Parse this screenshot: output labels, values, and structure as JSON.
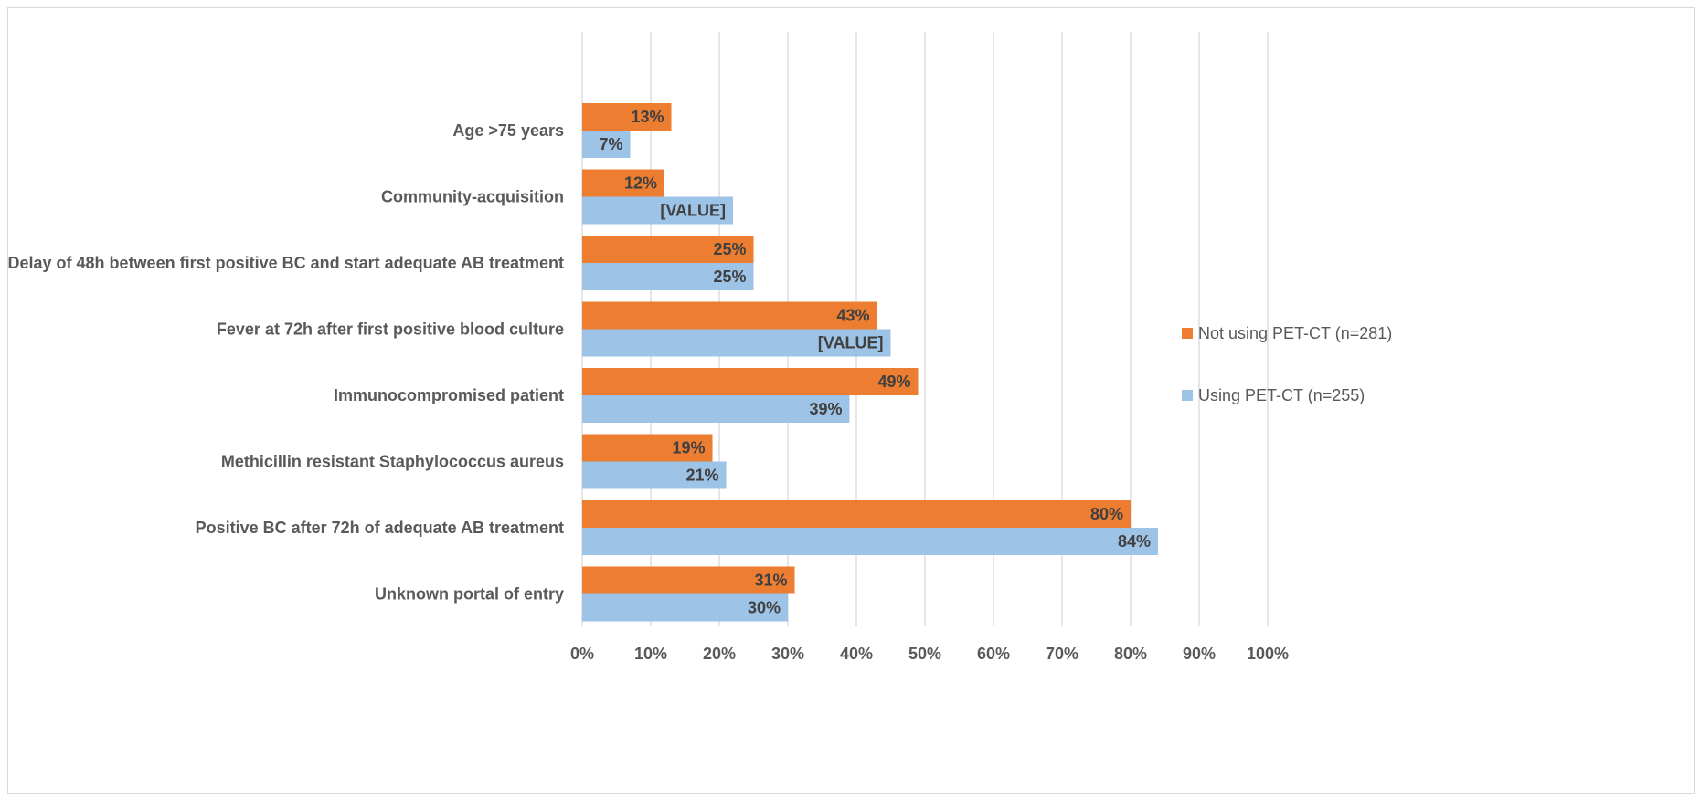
{
  "chart_data": {
    "type": "bar",
    "orientation": "horizontal",
    "categories": [
      "Age >75 years",
      "Community-acquisition",
      "Delay of 48h between first positive BC and start adequate AB treatment",
      "Fever at 72h after first positive blood culture",
      "Immunocompromised patient",
      "Methicillin resistant Staphylococcus aureus",
      "Positive BC after 72h of adequate AB treatment",
      "Unknown portal of entry"
    ],
    "series": [
      {
        "name": "Not using PET-CT (n=281)",
        "color": "#ED7D31",
        "values": [
          13,
          12,
          25,
          43,
          49,
          19,
          80,
          31
        ],
        "labels": [
          "13%",
          "12%",
          "25%",
          "43%",
          "49%",
          "19%",
          "80%",
          "31%"
        ]
      },
      {
        "name": "Using PET-CT (n=255)",
        "color": "#9DC3E6",
        "values": [
          7,
          22,
          25,
          45,
          39,
          21,
          84,
          30
        ],
        "labels": [
          "7%",
          "[VALUE]",
          "25%",
          "[VALUE]",
          "39%",
          "21%",
          "84%",
          "30%"
        ]
      }
    ],
    "xlim": [
      0,
      100
    ],
    "xticks": [
      "0%",
      "10%",
      "20%",
      "30%",
      "40%",
      "50%",
      "60%",
      "70%",
      "80%",
      "90%",
      "100%"
    ],
    "grid": true,
    "legend_position": "right"
  }
}
